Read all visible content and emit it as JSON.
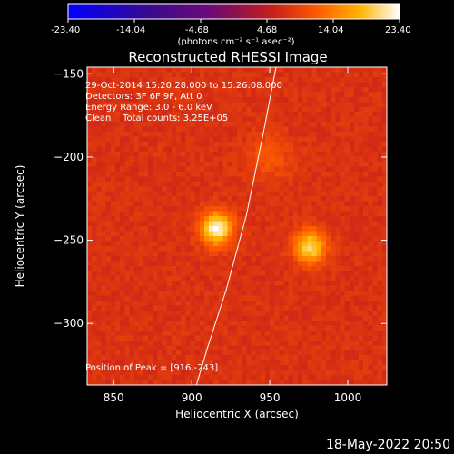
{
  "colorbar": {
    "tick_labels": [
      "-23.40",
      "-14.04",
      "-4.68",
      "4.68",
      "14.04",
      "23.40"
    ],
    "units_label": "(photons cm⁻² s⁻¹ asec⁻²)",
    "range": [
      -23.4,
      23.4
    ]
  },
  "chart_data": {
    "type": "heatmap",
    "title": "Reconstructed RHESSI Image",
    "xlabel": "Heliocentric X (arcsec)",
    "ylabel": "Heliocentric Y (arcsec)",
    "xlim": [
      833,
      1025
    ],
    "ylim": [
      -337,
      -146
    ],
    "x_ticks": [
      850,
      900,
      950,
      1000
    ],
    "y_ticks": [
      -150,
      -200,
      -250,
      -300
    ],
    "annotations": [
      "29-Oct-2014 15:20:28.000 to 15:26:08.000",
      "Detectors: 3F 6F 9F, Att 0",
      "Energy Range: 3.0 - 6.0 keV",
      "Clean    Total counts: 3.25E+05"
    ],
    "peak_label": "Position of Peak = [916,-243]",
    "sources": [
      {
        "x": 916,
        "y": -243,
        "peak": 23.4,
        "sigma": 7
      },
      {
        "x": 976,
        "y": -254,
        "peak": 20.5,
        "sigma": 7
      },
      {
        "x": 950,
        "y": -200,
        "peak": 11,
        "sigma": 10
      }
    ],
    "background_level": 7.5,
    "limb_curve": [
      [
        954,
        -146
      ],
      [
        946,
        -185
      ],
      [
        935,
        -235
      ],
      [
        922,
        -280
      ],
      [
        910,
        -315
      ],
      [
        903,
        -337
      ]
    ]
  },
  "timestamp": "18-May-2022 20:50"
}
